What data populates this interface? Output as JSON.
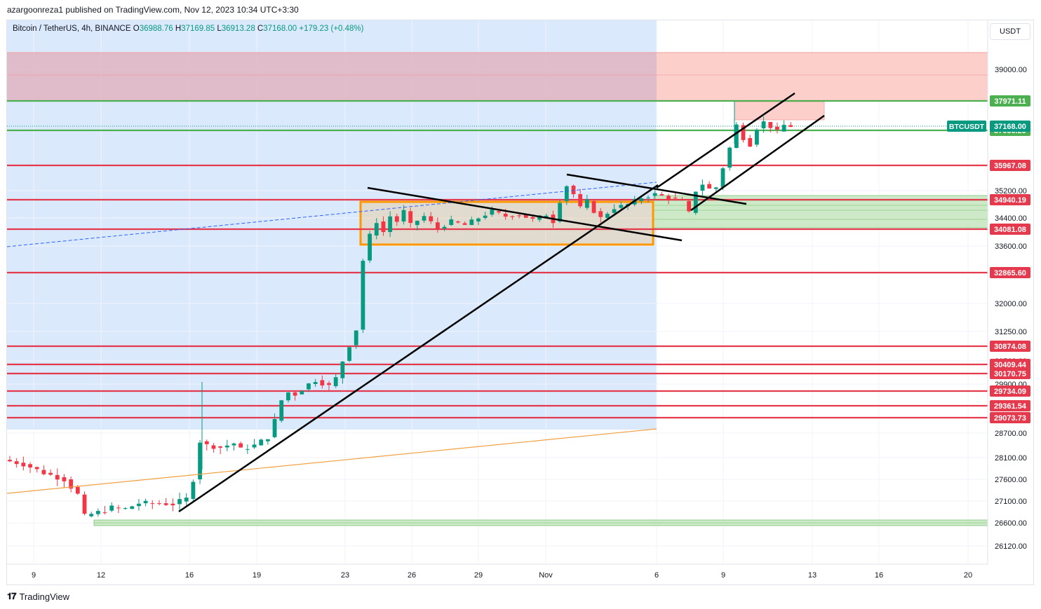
{
  "header": {
    "published": "azargoonreza1 published on TradingView.com, Nov 12, 2023 10:34 UTC+3:30"
  },
  "legend": {
    "symbol": "Bitcoin / TetherUS, 4h, BINANCE",
    "o_label": "O",
    "o": "36988.76",
    "h_label": "H",
    "h": "37169.85",
    "l_label": "L",
    "l": "36913.28",
    "c_label": "C",
    "c": "37168.00",
    "change": "+179.23 (+0.48%)"
  },
  "currency_button": "USDT",
  "footer": {
    "brand": "TradingView",
    "logo": "tradingview-logo-icon"
  },
  "colors": {
    "up": "#089981",
    "down": "#f23645",
    "level_red": "#e53a4d",
    "level_green": "#4caf50",
    "resistance_zone": "#f8b9b2",
    "blue_zone": "#bbd6f7",
    "box_border": "#ff9800",
    "trend": "#000000"
  },
  "chart_data": {
    "type": "candlestick",
    "symbol": "BTCUSDT",
    "x_tick_labels": [
      "9",
      "12",
      "16",
      "19",
      "23",
      "26",
      "29",
      "Nov",
      "6",
      "9",
      "13",
      "16",
      "20"
    ],
    "y_tick_labels": [
      "39000.00",
      "35200.00",
      "34400.00",
      "33600.00",
      "32000.00",
      "31250.00",
      "30500.00",
      "29900.00",
      "28700.00",
      "28100.00",
      "27600.00",
      "27100.00",
      "26600.00",
      "26120.00"
    ],
    "current_price": {
      "label": "BTCUSDT",
      "value": "37168.00"
    },
    "horizontal_levels": [
      {
        "value": "37971.11",
        "color": "green"
      },
      {
        "value": "37036.29",
        "color": "green"
      },
      {
        "value": "35967.08",
        "color": "red"
      },
      {
        "value": "34940.19",
        "color": "red"
      },
      {
        "value": "34081.08",
        "color": "red"
      },
      {
        "value": "32865.60",
        "color": "red"
      },
      {
        "value": "30874.08",
        "color": "red"
      },
      {
        "value": "30409.44",
        "color": "red"
      },
      {
        "value": "30170.75",
        "color": "red"
      },
      {
        "value": "29734.09",
        "color": "red"
      },
      {
        "value": "29361.54",
        "color": "red"
      },
      {
        "value": "29073.73",
        "color": "red"
      }
    ],
    "price_path": [
      [
        0,
        28050
      ],
      [
        3,
        27950
      ],
      [
        6,
        27750
      ],
      [
        9,
        27600
      ],
      [
        11,
        27250
      ],
      [
        12,
        26750
      ],
      [
        13,
        26800
      ],
      [
        15,
        26880
      ],
      [
        16,
        26950
      ],
      [
        18,
        26920
      ],
      [
        20,
        27050
      ],
      [
        23,
        27050
      ],
      [
        25,
        27030
      ],
      [
        27,
        27150
      ],
      [
        28,
        27600
      ],
      [
        29,
        28500
      ],
      [
        30,
        28400
      ],
      [
        32,
        28350
      ],
      [
        34,
        28450
      ],
      [
        35,
        28300
      ],
      [
        37,
        28400
      ],
      [
        39,
        28600
      ],
      [
        40,
        29000
      ],
      [
        41,
        29500
      ],
      [
        42,
        29700
      ],
      [
        43,
        29650
      ],
      [
        45,
        29900
      ],
      [
        46,
        30000
      ],
      [
        48,
        29850
      ],
      [
        49,
        30050
      ],
      [
        50,
        30500
      ],
      [
        51,
        30900
      ],
      [
        52,
        31300
      ],
      [
        53,
        33200
      ],
      [
        54,
        33900
      ],
      [
        55,
        34300
      ],
      [
        56,
        34000
      ],
      [
        57,
        34450
      ],
      [
        58,
        34300
      ],
      [
        59,
        34600
      ],
      [
        60,
        34200
      ],
      [
        62,
        34450
      ],
      [
        64,
        34100
      ],
      [
        66,
        34300
      ],
      [
        68,
        34200
      ],
      [
        70,
        34400
      ],
      [
        72,
        34600
      ],
      [
        74,
        34450
      ],
      [
        76,
        34500
      ],
      [
        78,
        34350
      ],
      [
        80,
        34500
      ],
      [
        81,
        34300
      ],
      [
        82,
        34900
      ],
      [
        83,
        35350
      ],
      [
        84,
        35100
      ],
      [
        85,
        34700
      ],
      [
        86,
        34900
      ],
      [
        87,
        34600
      ],
      [
        88,
        34400
      ],
      [
        89,
        34550
      ],
      [
        90,
        34700
      ],
      [
        92,
        34800
      ],
      [
        94,
        35000
      ],
      [
        96,
        35100
      ],
      [
        98,
        35000
      ],
      [
        100,
        34900
      ],
      [
        101,
        34550
      ],
      [
        102,
        35200
      ],
      [
        103,
        35400
      ],
      [
        104,
        35250
      ],
      [
        105,
        35300
      ],
      [
        106,
        35900
      ],
      [
        107,
        36500
      ],
      [
        108,
        37200
      ],
      [
        109,
        36800
      ],
      [
        110,
        36600
      ],
      [
        111,
        37100
      ],
      [
        112,
        37300
      ],
      [
        113,
        37150
      ],
      [
        114,
        37000
      ],
      [
        115,
        37200
      ],
      [
        116,
        37168
      ]
    ]
  }
}
